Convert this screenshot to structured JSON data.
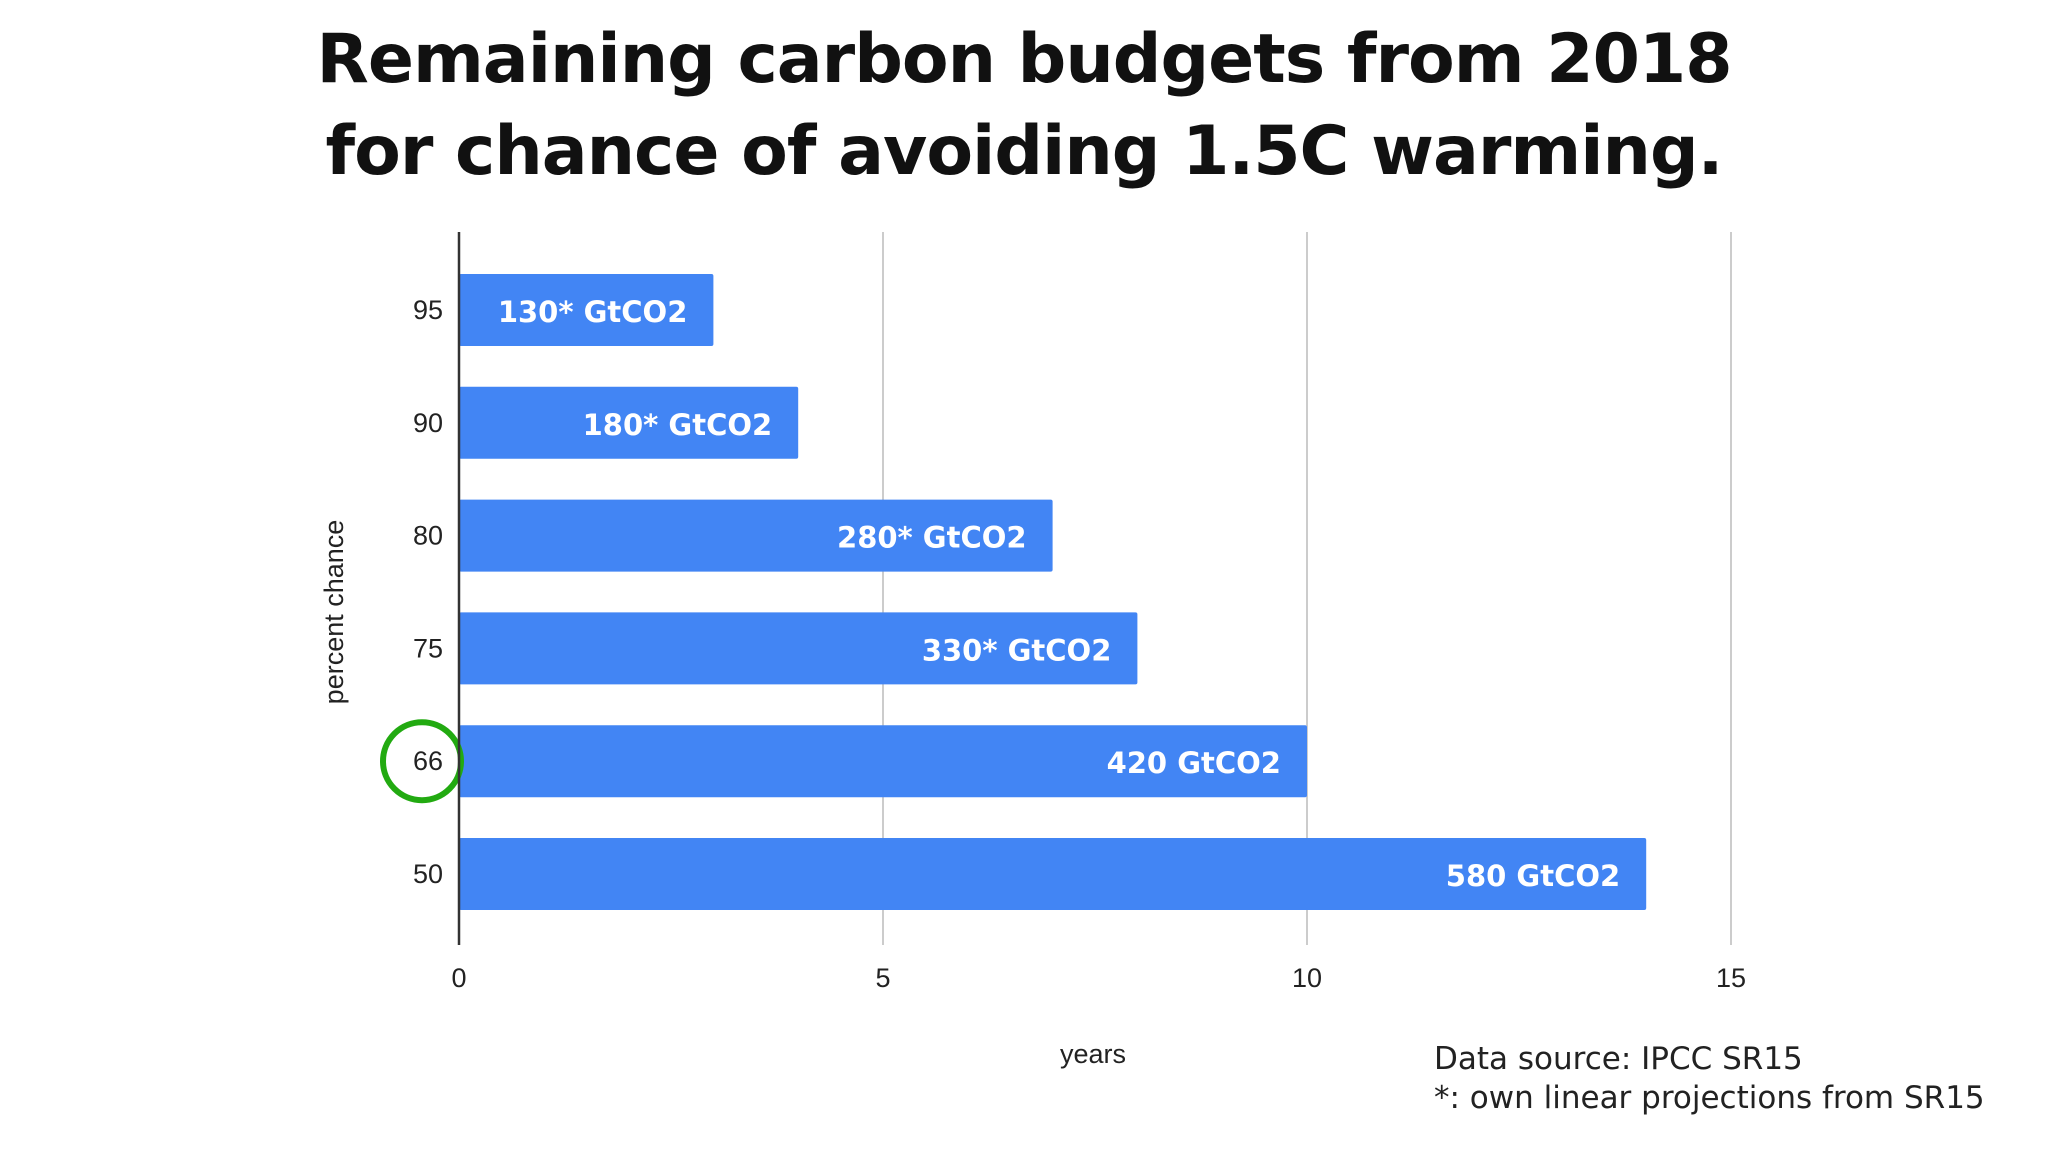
{
  "title": {
    "line1": "Remaining carbon budgets from 2018",
    "line2": "for chance of avoiding 1.5C warming."
  },
  "footer": {
    "source": "Data source: IPCC SR15",
    "note": "*: own linear projections from SR15"
  },
  "colors": {
    "bar": "#4285f4",
    "highlight_circle": "#22aa11",
    "gridline": "#cccccc",
    "axis": "#333333"
  },
  "chart_data": {
    "type": "bar",
    "orientation": "horizontal",
    "categories": [
      "95",
      "90",
      "80",
      "75",
      "66",
      "50"
    ],
    "values": [
      3,
      4,
      7,
      8,
      10,
      14
    ],
    "data_labels": [
      "130* GtCO2",
      "180* GtCO2",
      "280* GtCO2",
      "330* GtCO2",
      "420 GtCO2",
      "580 GtCO2"
    ],
    "xlabel": "years",
    "ylabel": "percent chance",
    "xlim": [
      0,
      18
    ],
    "xticks": [
      0,
      5,
      10,
      15
    ],
    "grid": "vertical",
    "highlighted_category": "66"
  }
}
